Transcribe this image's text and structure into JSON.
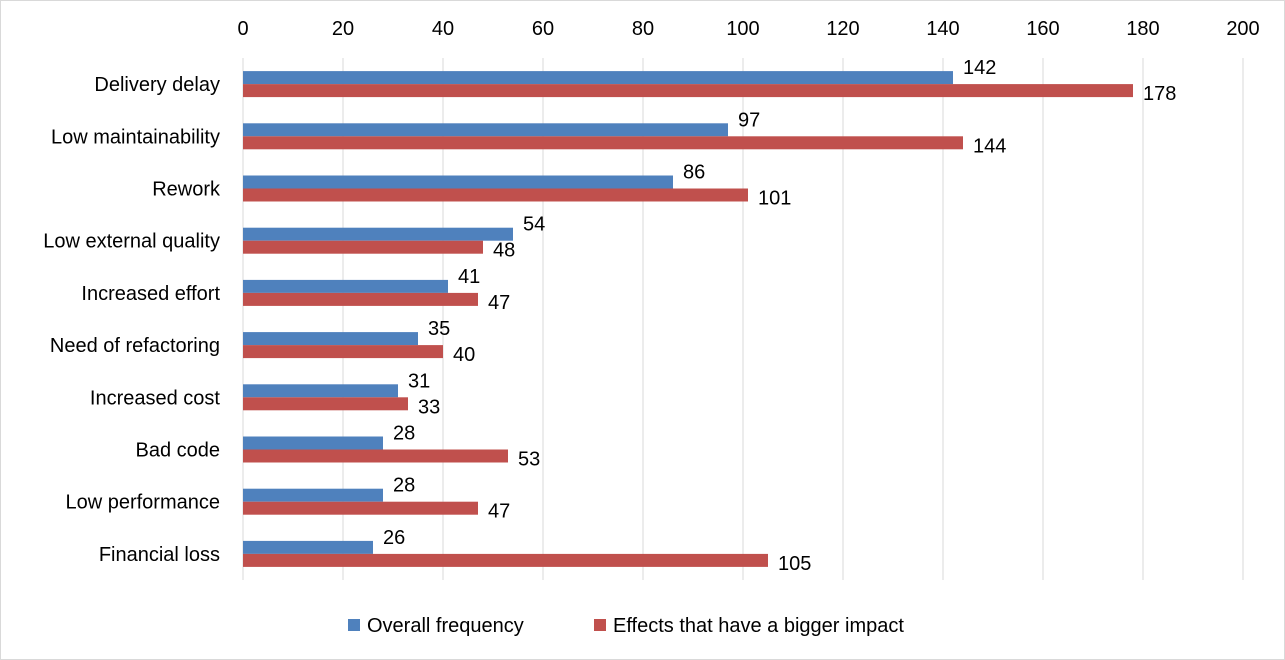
{
  "chart_data": {
    "type": "bar",
    "orientation": "horizontal",
    "categories": [
      "Delivery delay",
      "Low maintainability",
      "Rework",
      "Low external quality",
      "Increased effort",
      "Need of refactoring",
      "Increased cost",
      "Bad code",
      "Low performance",
      "Financial loss"
    ],
    "series": [
      {
        "name": "Overall frequency",
        "color": "#4f81bd",
        "values": [
          142,
          97,
          86,
          54,
          41,
          35,
          31,
          28,
          28,
          26
        ]
      },
      {
        "name": "Effects that have a bigger impact",
        "color": "#c0504d",
        "values": [
          178,
          144,
          101,
          48,
          47,
          40,
          33,
          53,
          47,
          105
        ]
      }
    ],
    "xlim": [
      0,
      200
    ],
    "ticks": [
      0,
      20,
      40,
      60,
      80,
      100,
      120,
      140,
      160,
      180,
      200
    ],
    "x_axis_position": "top",
    "grid": true,
    "data_labels": true,
    "legend_position": "bottom",
    "title": "",
    "xlabel": "",
    "ylabel": ""
  }
}
